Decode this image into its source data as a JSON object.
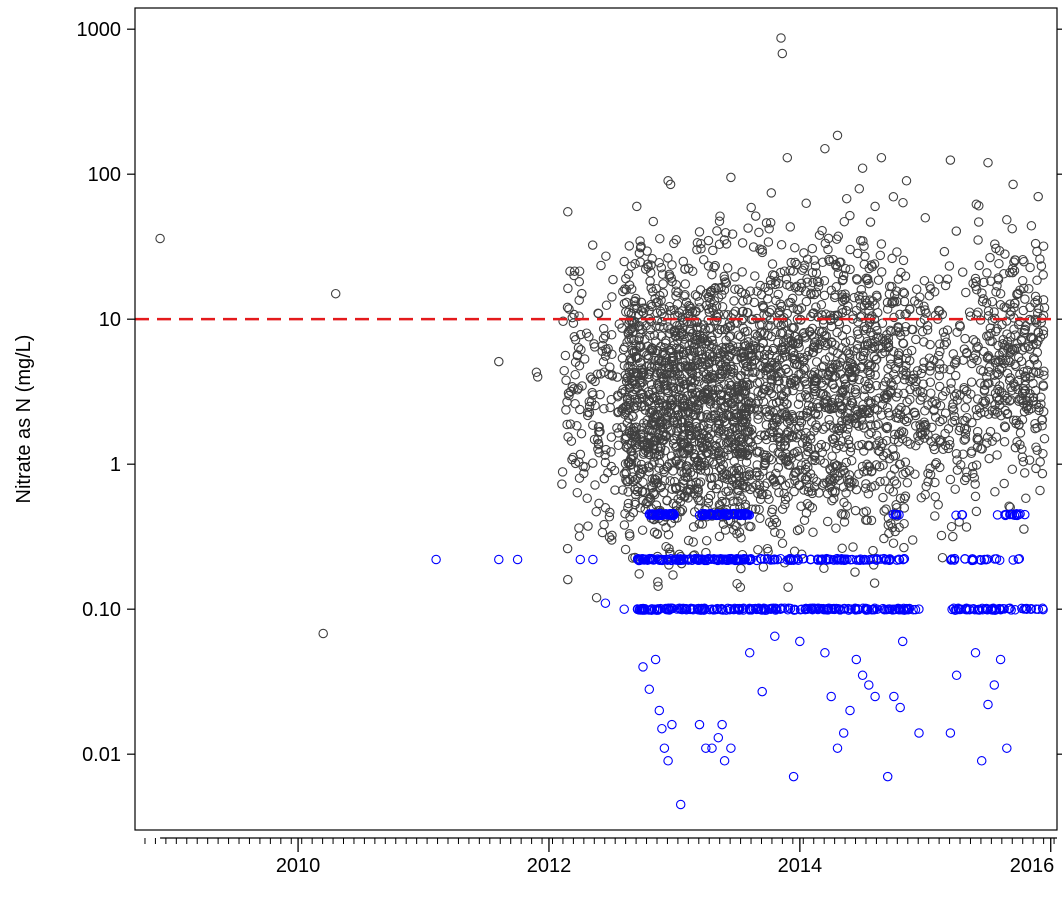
{
  "chart_data": {
    "type": "scatter",
    "title": "",
    "xlabel": "",
    "ylabel": "Nitrate as N (mg/L)",
    "xlim": [
      2008.7,
      2016.05
    ],
    "ylim": [
      0.003,
      1400
    ],
    "y_scale": "log",
    "grid": false,
    "x_ticks": [
      {
        "value": 2010,
        "label": "2010"
      },
      {
        "value": 2012,
        "label": "2012"
      },
      {
        "value": 2014,
        "label": "2014"
      },
      {
        "value": 2016,
        "label": "2016"
      }
    ],
    "x_minor_tick_interval": 0.0833,
    "y_ticks": [
      {
        "value": 0.01,
        "label": "0.01"
      },
      {
        "value": 0.1,
        "label": "0.10"
      },
      {
        "value": 1,
        "label": "1"
      },
      {
        "value": 10,
        "label": "10"
      },
      {
        "value": 100,
        "label": "100"
      },
      {
        "value": 1000,
        "label": "1000"
      }
    ],
    "reference_line": {
      "y": 10,
      "color": "#e41a1c",
      "style": "dashed"
    },
    "series": [
      {
        "color": "#404040",
        "marker": "open-circle",
        "points": [
          [
            2008.9,
            36
          ],
          [
            2010.2,
            0.068
          ],
          [
            2010.3,
            15
          ],
          [
            2011.6,
            5.1
          ],
          [
            2011.9,
            4.3
          ],
          [
            2011.91,
            4.0
          ],
          [
            2013.85,
            870
          ],
          [
            2013.86,
            680
          ],
          [
            2012.15,
            55
          ],
          [
            2012.2,
            20
          ],
          [
            2012.3,
            8
          ],
          [
            2012.35,
            3
          ],
          [
            2012.4,
            1.2
          ],
          [
            2012.45,
            0.5
          ],
          [
            2012.5,
            0.3
          ],
          [
            2012.38,
            0.12
          ],
          [
            2012.15,
            0.16
          ],
          [
            2012.6,
            25
          ],
          [
            2012.7,
            60
          ],
          [
            2012.8,
            10
          ],
          [
            2012.9,
            4
          ],
          [
            2013.0,
            1.5
          ],
          [
            2012.95,
            90
          ],
          [
            2012.97,
            85
          ],
          [
            2013.2,
            40
          ],
          [
            2013.3,
            12
          ],
          [
            2013.35,
            2
          ],
          [
            2013.4,
            0.8
          ],
          [
            2013.45,
            95
          ],
          [
            2013.5,
            0.15
          ],
          [
            2013.7,
            30
          ],
          [
            2013.8,
            5
          ],
          [
            2013.9,
            130
          ],
          [
            2014.0,
            2
          ],
          [
            2014.1,
            0.5
          ],
          [
            2014.2,
            150
          ],
          [
            2014.3,
            185
          ],
          [
            2014.35,
            20
          ],
          [
            2014.5,
            110
          ],
          [
            2014.6,
            60
          ],
          [
            2014.65,
            130
          ],
          [
            2014.7,
            3
          ],
          [
            2014.8,
            1
          ],
          [
            2014.85,
            90
          ],
          [
            2014.9,
            0.3
          ],
          [
            2015.0,
            50
          ],
          [
            2015.1,
            10
          ],
          [
            2015.2,
            125
          ],
          [
            2015.3,
            2
          ],
          [
            2015.4,
            0.6
          ],
          [
            2015.5,
            120
          ],
          [
            2015.6,
            15
          ],
          [
            2015.7,
            85
          ],
          [
            2015.8,
            4
          ],
          [
            2015.9,
            70
          ],
          [
            2015.95,
            1.5
          ],
          [
            2015.95,
            12
          ]
        ],
        "clusters": [
          {
            "x": [
              2012.1,
              2012.6
            ],
            "y": [
              0.12,
              60
            ],
            "count": 160
          },
          {
            "x": [
              2012.6,
              2013.1
            ],
            "y": [
              0.09,
              75
            ],
            "count": 700
          },
          {
            "x": [
              2013.1,
              2013.6
            ],
            "y": [
              0.09,
              80
            ],
            "count": 700
          },
          {
            "x": [
              2013.6,
              2014.1
            ],
            "y": [
              0.09,
              120
            ],
            "count": 480
          },
          {
            "x": [
              2014.1,
              2014.85
            ],
            "y": [
              0.09,
              140
            ],
            "count": 650
          },
          {
            "x": [
              2014.85,
              2015.4
            ],
            "y": [
              0.15,
              60
            ],
            "count": 220
          },
          {
            "x": [
              2015.4,
              2015.95
            ],
            "y": [
              0.3,
              90
            ],
            "count": 330
          }
        ]
      },
      {
        "color": "#0000ff",
        "marker": "open-circle",
        "points": [
          [
            2011.1,
            0.22
          ],
          [
            2011.6,
            0.22
          ],
          [
            2011.75,
            0.22
          ],
          [
            2012.25,
            0.22
          ],
          [
            2012.35,
            0.22
          ],
          [
            2012.45,
            0.11
          ],
          [
            2012.6,
            0.1
          ],
          [
            2012.75,
            0.04
          ],
          [
            2012.8,
            0.028
          ],
          [
            2012.85,
            0.045
          ],
          [
            2012.88,
            0.02
          ],
          [
            2012.9,
            0.015
          ],
          [
            2012.92,
            0.011
          ],
          [
            2012.95,
            0.009
          ],
          [
            2012.98,
            0.016
          ],
          [
            2013.05,
            0.0045
          ],
          [
            2013.2,
            0.016
          ],
          [
            2013.25,
            0.011
          ],
          [
            2013.3,
            0.011
          ],
          [
            2013.35,
            0.013
          ],
          [
            2013.38,
            0.016
          ],
          [
            2013.4,
            0.009
          ],
          [
            2013.45,
            0.011
          ],
          [
            2013.6,
            0.05
          ],
          [
            2013.7,
            0.027
          ],
          [
            2013.8,
            0.065
          ],
          [
            2013.95,
            0.007
          ],
          [
            2014.0,
            0.06
          ],
          [
            2014.2,
            0.05
          ],
          [
            2014.25,
            0.025
          ],
          [
            2014.3,
            0.011
          ],
          [
            2014.35,
            0.014
          ],
          [
            2014.4,
            0.02
          ],
          [
            2014.45,
            0.045
          ],
          [
            2014.5,
            0.035
          ],
          [
            2014.55,
            0.03
          ],
          [
            2014.6,
            0.025
          ],
          [
            2014.7,
            0.007
          ],
          [
            2014.75,
            0.025
          ],
          [
            2014.8,
            0.021
          ],
          [
            2014.82,
            0.06
          ],
          [
            2014.95,
            0.014
          ],
          [
            2015.2,
            0.014
          ],
          [
            2015.25,
            0.035
          ],
          [
            2015.4,
            0.05
          ],
          [
            2015.45,
            0.009
          ],
          [
            2015.5,
            0.022
          ],
          [
            2015.55,
            0.03
          ],
          [
            2015.6,
            0.045
          ],
          [
            2015.65,
            0.011
          ]
        ],
        "bands": [
          {
            "y": 0.45,
            "segments": [
              [
                2012.8,
                2013.0,
                40
              ],
              [
                2013.2,
                2013.6,
                70
              ],
              [
                2014.7,
                2014.8,
                5
              ],
              [
                2015.2,
                2015.3,
                3
              ],
              [
                2015.5,
                2015.8,
                15
              ]
            ]
          },
          {
            "y": 0.22,
            "segments": [
              [
                2012.7,
                2013.0,
                40
              ],
              [
                2013.0,
                2013.6,
                90
              ],
              [
                2013.6,
                2014.2,
                40
              ],
              [
                2014.2,
                2014.85,
                50
              ],
              [
                2015.2,
                2015.6,
                20
              ],
              [
                2015.7,
                2015.75,
                3
              ]
            ]
          },
          {
            "y": 0.1,
            "segments": [
              [
                2012.7,
                2013.0,
                40
              ],
              [
                2013.0,
                2013.6,
                60
              ],
              [
                2013.6,
                2014.2,
                60
              ],
              [
                2014.2,
                2014.95,
                80
              ],
              [
                2015.2,
                2015.95,
                60
              ]
            ]
          }
        ]
      }
    ]
  }
}
